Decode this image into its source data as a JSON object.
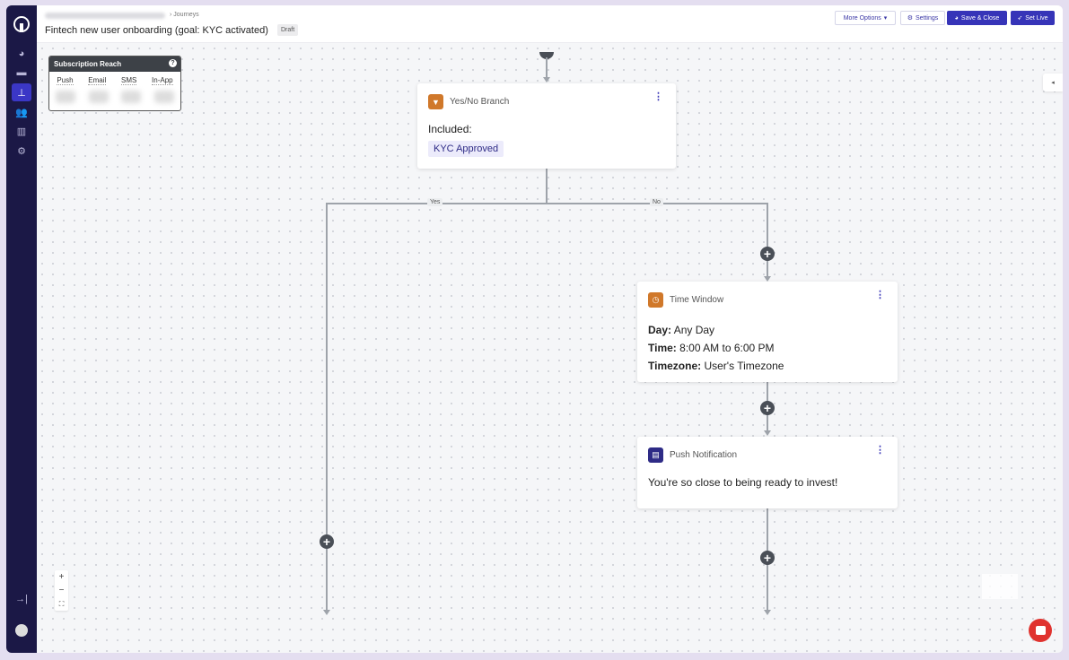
{
  "header": {
    "breadcrumb_current": "Journeys",
    "title": "Fintech new user onboarding (goal: KYC activated)",
    "status_badge": "Draft",
    "buttons": {
      "more_options": "More Options",
      "settings": "Settings",
      "save_close": "Save & Close",
      "set_live": "Set Live"
    }
  },
  "sidebar": {
    "items": [
      "dashboard-icon",
      "messages-icon",
      "journeys-icon",
      "users-icon",
      "analytics-icon",
      "settings-icon"
    ],
    "active": "journeys-icon"
  },
  "subscription_reach": {
    "title": "Subscription Reach",
    "columns": [
      "Push",
      "Email",
      "SMS",
      "In-App"
    ]
  },
  "nodes": {
    "branch": {
      "title": "Yes/No Branch",
      "label": "Included:",
      "tag": "KYC Approved",
      "icon_color": "#d0782a"
    },
    "edges": {
      "yes": "Yes",
      "no": "No"
    },
    "time_window": {
      "title": "Time Window",
      "icon_color": "#d0782a",
      "rows": [
        {
          "key": "Day:",
          "value": "Any Day"
        },
        {
          "key": "Time:",
          "value": "8:00 AM to 6:00 PM"
        },
        {
          "key": "Timezone:",
          "value": "User's Timezone"
        }
      ]
    },
    "push": {
      "title": "Push Notification",
      "message": "You're so close to being ready to invest!",
      "icon_color": "#2e2b86"
    }
  },
  "zoom_controls": {
    "in": "+",
    "out": "−",
    "fit": "⛶"
  },
  "colors": {
    "accent": "#3634b8",
    "sidebar": "#1b1846",
    "chat": "#e0332f"
  }
}
